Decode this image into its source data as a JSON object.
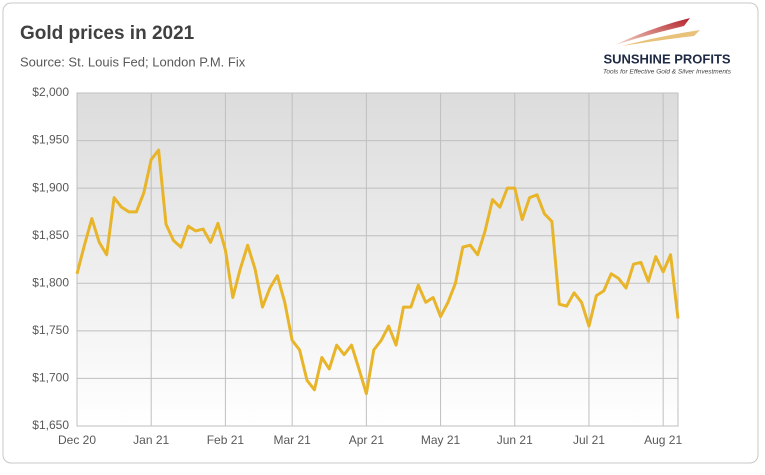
{
  "chart_data": {
    "type": "line",
    "title": "Gold prices in 2021",
    "subtitle": "Source: St. Louis Fed; London P.M. Fix",
    "logo": {
      "name": "SUNSHINE PROFITS",
      "tagline": "Tools for Effective Gold & Silver Investments"
    },
    "categories": [
      "Dec 20",
      null,
      null,
      null,
      null,
      null,
      null,
      null,
      null,
      null,
      "Jan 21",
      null,
      null,
      null,
      null,
      null,
      null,
      null,
      null,
      null,
      "Feb 21",
      null,
      null,
      null,
      null,
      null,
      null,
      null,
      null,
      "Mar 21",
      null,
      null,
      null,
      null,
      null,
      null,
      null,
      null,
      null,
      "Apr 21",
      null,
      null,
      null,
      null,
      null,
      null,
      null,
      null,
      null,
      "May 21",
      null,
      null,
      null,
      null,
      null,
      null,
      null,
      null,
      null,
      "Jun 21",
      null,
      null,
      null,
      null,
      null,
      null,
      null,
      null,
      null,
      "Jul 21",
      null,
      null,
      null,
      null,
      null,
      null,
      null,
      null,
      null,
      "Aug 21",
      null,
      null
    ],
    "values": [
      1810,
      1840,
      1868,
      1843,
      1830,
      1890,
      1880,
      1875,
      1875,
      1895,
      1930,
      1940,
      1862,
      1845,
      1838,
      1860,
      1855,
      1857,
      1843,
      1863,
      1835,
      1785,
      1815,
      1840,
      1815,
      1775,
      1795,
      1808,
      1780,
      1740,
      1730,
      1698,
      1688,
      1722,
      1710,
      1735,
      1725,
      1735,
      1710,
      1684,
      1730,
      1740,
      1755,
      1735,
      1775,
      1775,
      1798,
      1780,
      1785,
      1765,
      1780,
      1800,
      1838,
      1840,
      1830,
      1855,
      1888,
      1880,
      1900,
      1900,
      1867,
      1890,
      1893,
      1873,
      1865,
      1778,
      1776,
      1790,
      1780,
      1755,
      1787,
      1792,
      1810,
      1805,
      1795,
      1820,
      1822,
      1802,
      1828,
      1812,
      1830,
      1763
    ],
    "color": "#e8b52a",
    "ylim": [
      1650,
      2000
    ],
    "yticks": [
      {
        "value": 1650,
        "label": "$1,650"
      },
      {
        "value": 1700,
        "label": "$1,700"
      },
      {
        "value": 1750,
        "label": "$1,750"
      },
      {
        "value": 1800,
        "label": "$1,800"
      },
      {
        "value": 1850,
        "label": "$1,850"
      },
      {
        "value": 1900,
        "label": "$1,900"
      },
      {
        "value": 1950,
        "label": "$1,950"
      },
      {
        "value": 2000,
        "label": "$2,000"
      }
    ],
    "grid": true
  }
}
